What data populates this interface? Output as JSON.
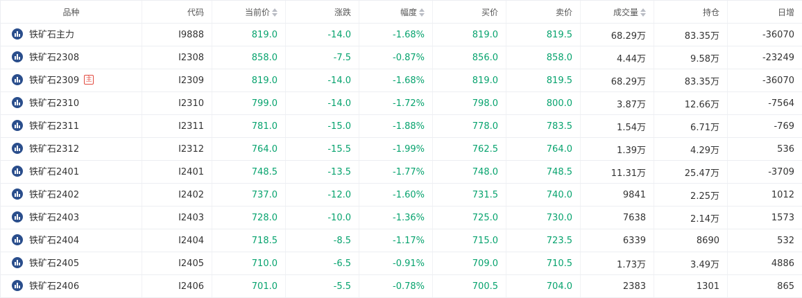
{
  "colors": {
    "price_green": "#07a36e",
    "icon_blue": "#2a4e8c",
    "main_badge_red": "#e2483d"
  },
  "header": {
    "name": "品种",
    "code": "代码",
    "price": "当前价",
    "change": "涨跌",
    "pct": "幅度",
    "bid": "买价",
    "ask": "卖价",
    "volume": "成交量",
    "oi": "持仓",
    "daily": "日增"
  },
  "row_icon": "bar-chart-icon",
  "rows": [
    {
      "name": "铁矿石主力",
      "code": "I9888",
      "price": "819.0",
      "change": "-14.0",
      "pct": "-1.68%",
      "bid": "819.0",
      "ask": "819.5",
      "volume": "68.29万",
      "oi": "83.35万",
      "daily": "-36070"
    },
    {
      "name": "铁矿石2308",
      "code": "I2308",
      "price": "858.0",
      "change": "-7.5",
      "pct": "-0.87%",
      "bid": "856.0",
      "ask": "858.0",
      "volume": "4.44万",
      "oi": "9.58万",
      "daily": "-23249"
    },
    {
      "name": "铁矿石2309",
      "badge": "主",
      "code": "I2309",
      "price": "819.0",
      "change": "-14.0",
      "pct": "-1.68%",
      "bid": "819.0",
      "ask": "819.5",
      "volume": "68.29万",
      "oi": "83.35万",
      "daily": "-36070"
    },
    {
      "name": "铁矿石2310",
      "code": "I2310",
      "price": "799.0",
      "change": "-14.0",
      "pct": "-1.72%",
      "bid": "798.0",
      "ask": "800.0",
      "volume": "3.87万",
      "oi": "12.66万",
      "daily": "-7564"
    },
    {
      "name": "铁矿石2311",
      "code": "I2311",
      "price": "781.0",
      "change": "-15.0",
      "pct": "-1.88%",
      "bid": "778.0",
      "ask": "783.5",
      "volume": "1.54万",
      "oi": "6.71万",
      "daily": "-769"
    },
    {
      "name": "铁矿石2312",
      "code": "I2312",
      "price": "764.0",
      "change": "-15.5",
      "pct": "-1.99%",
      "bid": "762.5",
      "ask": "764.0",
      "volume": "1.39万",
      "oi": "4.29万",
      "daily": "536"
    },
    {
      "name": "铁矿石2401",
      "code": "I2401",
      "price": "748.5",
      "change": "-13.5",
      "pct": "-1.77%",
      "bid": "748.0",
      "ask": "748.5",
      "volume": "11.31万",
      "oi": "25.47万",
      "daily": "-3709"
    },
    {
      "name": "铁矿石2402",
      "code": "I2402",
      "price": "737.0",
      "change": "-12.0",
      "pct": "-1.60%",
      "bid": "731.5",
      "ask": "740.0",
      "volume": "9841",
      "oi": "2.25万",
      "daily": "1012"
    },
    {
      "name": "铁矿石2403",
      "code": "I2403",
      "price": "728.0",
      "change": "-10.0",
      "pct": "-1.36%",
      "bid": "725.0",
      "ask": "730.0",
      "volume": "7638",
      "oi": "2.14万",
      "daily": "1573"
    },
    {
      "name": "铁矿石2404",
      "code": "I2404",
      "price": "718.5",
      "change": "-8.5",
      "pct": "-1.17%",
      "bid": "715.0",
      "ask": "723.5",
      "volume": "6339",
      "oi": "8690",
      "daily": "532"
    },
    {
      "name": "铁矿石2405",
      "code": "I2405",
      "price": "710.0",
      "change": "-6.5",
      "pct": "-0.91%",
      "bid": "709.0",
      "ask": "710.5",
      "volume": "1.73万",
      "oi": "3.49万",
      "daily": "4886"
    },
    {
      "name": "铁矿石2406",
      "code": "I2406",
      "price": "701.0",
      "change": "-5.5",
      "pct": "-0.78%",
      "bid": "700.5",
      "ask": "704.0",
      "volume": "2383",
      "oi": "1301",
      "daily": "865"
    }
  ]
}
